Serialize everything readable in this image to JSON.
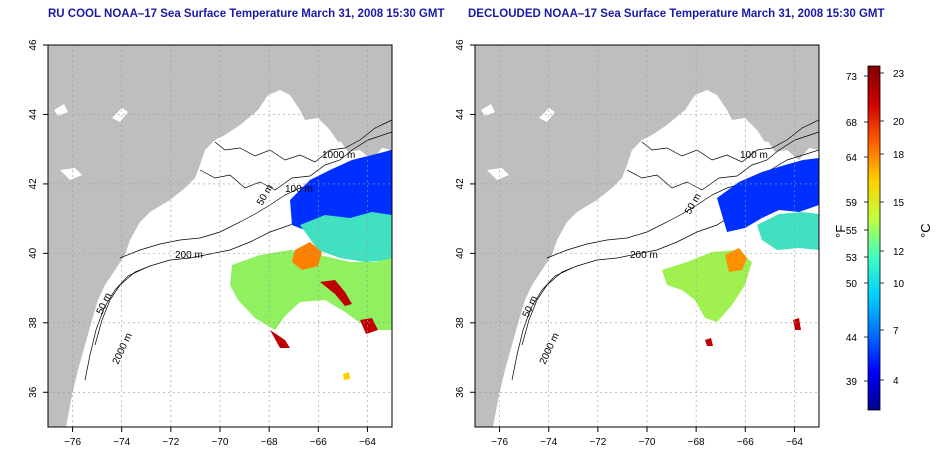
{
  "panels": [
    {
      "title": "RU COOL NOAA–17 Sea Surface Temperature March 31, 2008 15:30 GMT",
      "contour_labels": [
        "50 m",
        "100 m",
        "200 m",
        "1000 m",
        "50 m",
        "2000 m"
      ]
    },
    {
      "title": "DECLOUDED NOAA–17 Sea Surface Temperature March 31, 2008 15:30 GMT",
      "contour_labels": [
        "50 m",
        "100 m",
        "200 m",
        "2000 m",
        "50 m"
      ]
    }
  ],
  "axes": {
    "x_ticks": [
      "−76",
      "−74",
      "−72",
      "−70",
      "−68",
      "−66",
      "−64"
    ],
    "y_ticks": [
      "46",
      "44",
      "42",
      "40",
      "38",
      "36"
    ],
    "xlim": [
      -77,
      -63
    ],
    "ylim": [
      35,
      46
    ]
  },
  "colorbar": {
    "f_label": "°F",
    "c_label": "°C",
    "f_ticks": [
      "73",
      "68",
      "64",
      "59",
      "55",
      "53",
      "50",
      "44",
      "39"
    ],
    "c_ticks": [
      "23",
      "20",
      "18",
      "15",
      "12",
      "10",
      "7",
      "4"
    ],
    "colors": [
      "#00008c",
      "#0000ff",
      "#0070ff",
      "#00d0ff",
      "#40ffc0",
      "#c0ff40",
      "#ffd000",
      "#ff6000",
      "#d00000",
      "#800000"
    ]
  },
  "style": {
    "land": "#bebebe",
    "title_color": "#1a1aa6"
  }
}
